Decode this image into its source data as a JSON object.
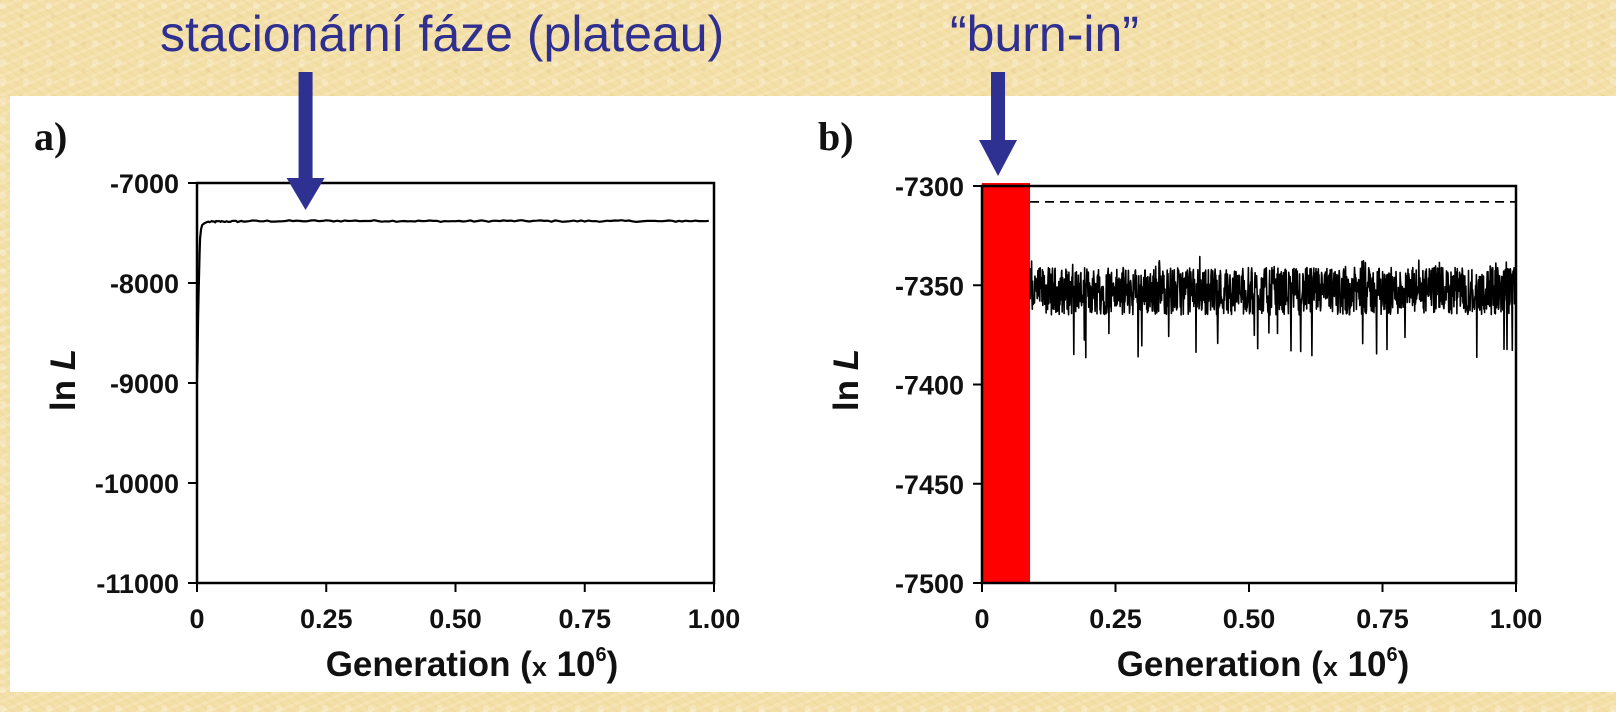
{
  "annotations": {
    "plateau": "stacionární fáze (plateau)",
    "burnin": "“burn-in”"
  },
  "colors": {
    "arrow": "#2e3192",
    "burnin_band": "#ff0000",
    "trace": "#000000",
    "background": "#f3dfa8"
  },
  "chart_data": [
    {
      "type": "line",
      "panel_label": "a)",
      "xlabel": "Generation (x 10⁶)",
      "xlabel_parts": {
        "main": "Generation (",
        "times": "x",
        "base": " 10",
        "sup": "6",
        "close": ")"
      },
      "ylabel": "ln L",
      "ylabel_parts": {
        "fn": "ln ",
        "var": "L"
      },
      "xlim": [
        0,
        1.0
      ],
      "ylim": [
        -11000,
        -7000
      ],
      "xticks": [
        0,
        0.25,
        0.5,
        0.75,
        1.0
      ],
      "xtick_labels": [
        "0",
        "0.25",
        "0.50",
        "0.75",
        "1.00"
      ],
      "yticks": [
        -7000,
        -8000,
        -9000,
        -10000,
        -11000
      ],
      "ytick_labels": [
        "-7000",
        "-8000",
        "-9000",
        "-10000",
        "-11000"
      ],
      "grid": false,
      "series": [
        {
          "x": [
            0,
            0.001,
            0.002,
            0.003,
            0.004,
            0.005,
            0.006,
            0.008,
            0.01,
            0.015,
            0.02,
            0.05,
            0.1,
            0.2,
            0.3,
            0.4,
            0.5,
            0.6,
            0.7,
            0.8,
            0.9,
            0.99
          ],
          "y": [
            -8950,
            -8800,
            -8400,
            -8100,
            -7900,
            -7700,
            -7550,
            -7460,
            -7420,
            -7400,
            -7390,
            -7385,
            -7382,
            -7380,
            -7378,
            -7380,
            -7382,
            -7379,
            -7381,
            -7380,
            -7382,
            -7378
          ],
          "noise": 8
        }
      ],
      "arrow_at": 0.21
    },
    {
      "type": "line",
      "panel_label": "b)",
      "xlabel": "Generation (x 10⁶)",
      "xlabel_parts": {
        "main": "Generation (",
        "times": "x",
        "base": " 10",
        "sup": "6",
        "close": ")"
      },
      "ylabel": "ln L",
      "ylabel_parts": {
        "fn": "ln ",
        "var": "L"
      },
      "xlim": [
        0,
        1.0
      ],
      "ylim": [
        -7500,
        -7300
      ],
      "xticks": [
        0,
        0.25,
        0.5,
        0.75,
        1.0
      ],
      "xtick_labels": [
        "0",
        "0.25",
        "0.50",
        "0.75",
        "1.00"
      ],
      "yticks": [
        -7300,
        -7350,
        -7400,
        -7450,
        -7500
      ],
      "ytick_labels": [
        "-7300",
        "-7350",
        "-7400",
        "-7450",
        "-7500"
      ],
      "grid": false,
      "burnin_region": [
        0,
        0.09
      ],
      "reference_line": -7308,
      "series": [
        {
          "x_range": [
            0.09,
            1.0
          ],
          "mean": -7353,
          "amplitude": 12,
          "spike_min": -7387,
          "spike_max": -7335
        }
      ],
      "arrow_at": 0.03
    }
  ]
}
